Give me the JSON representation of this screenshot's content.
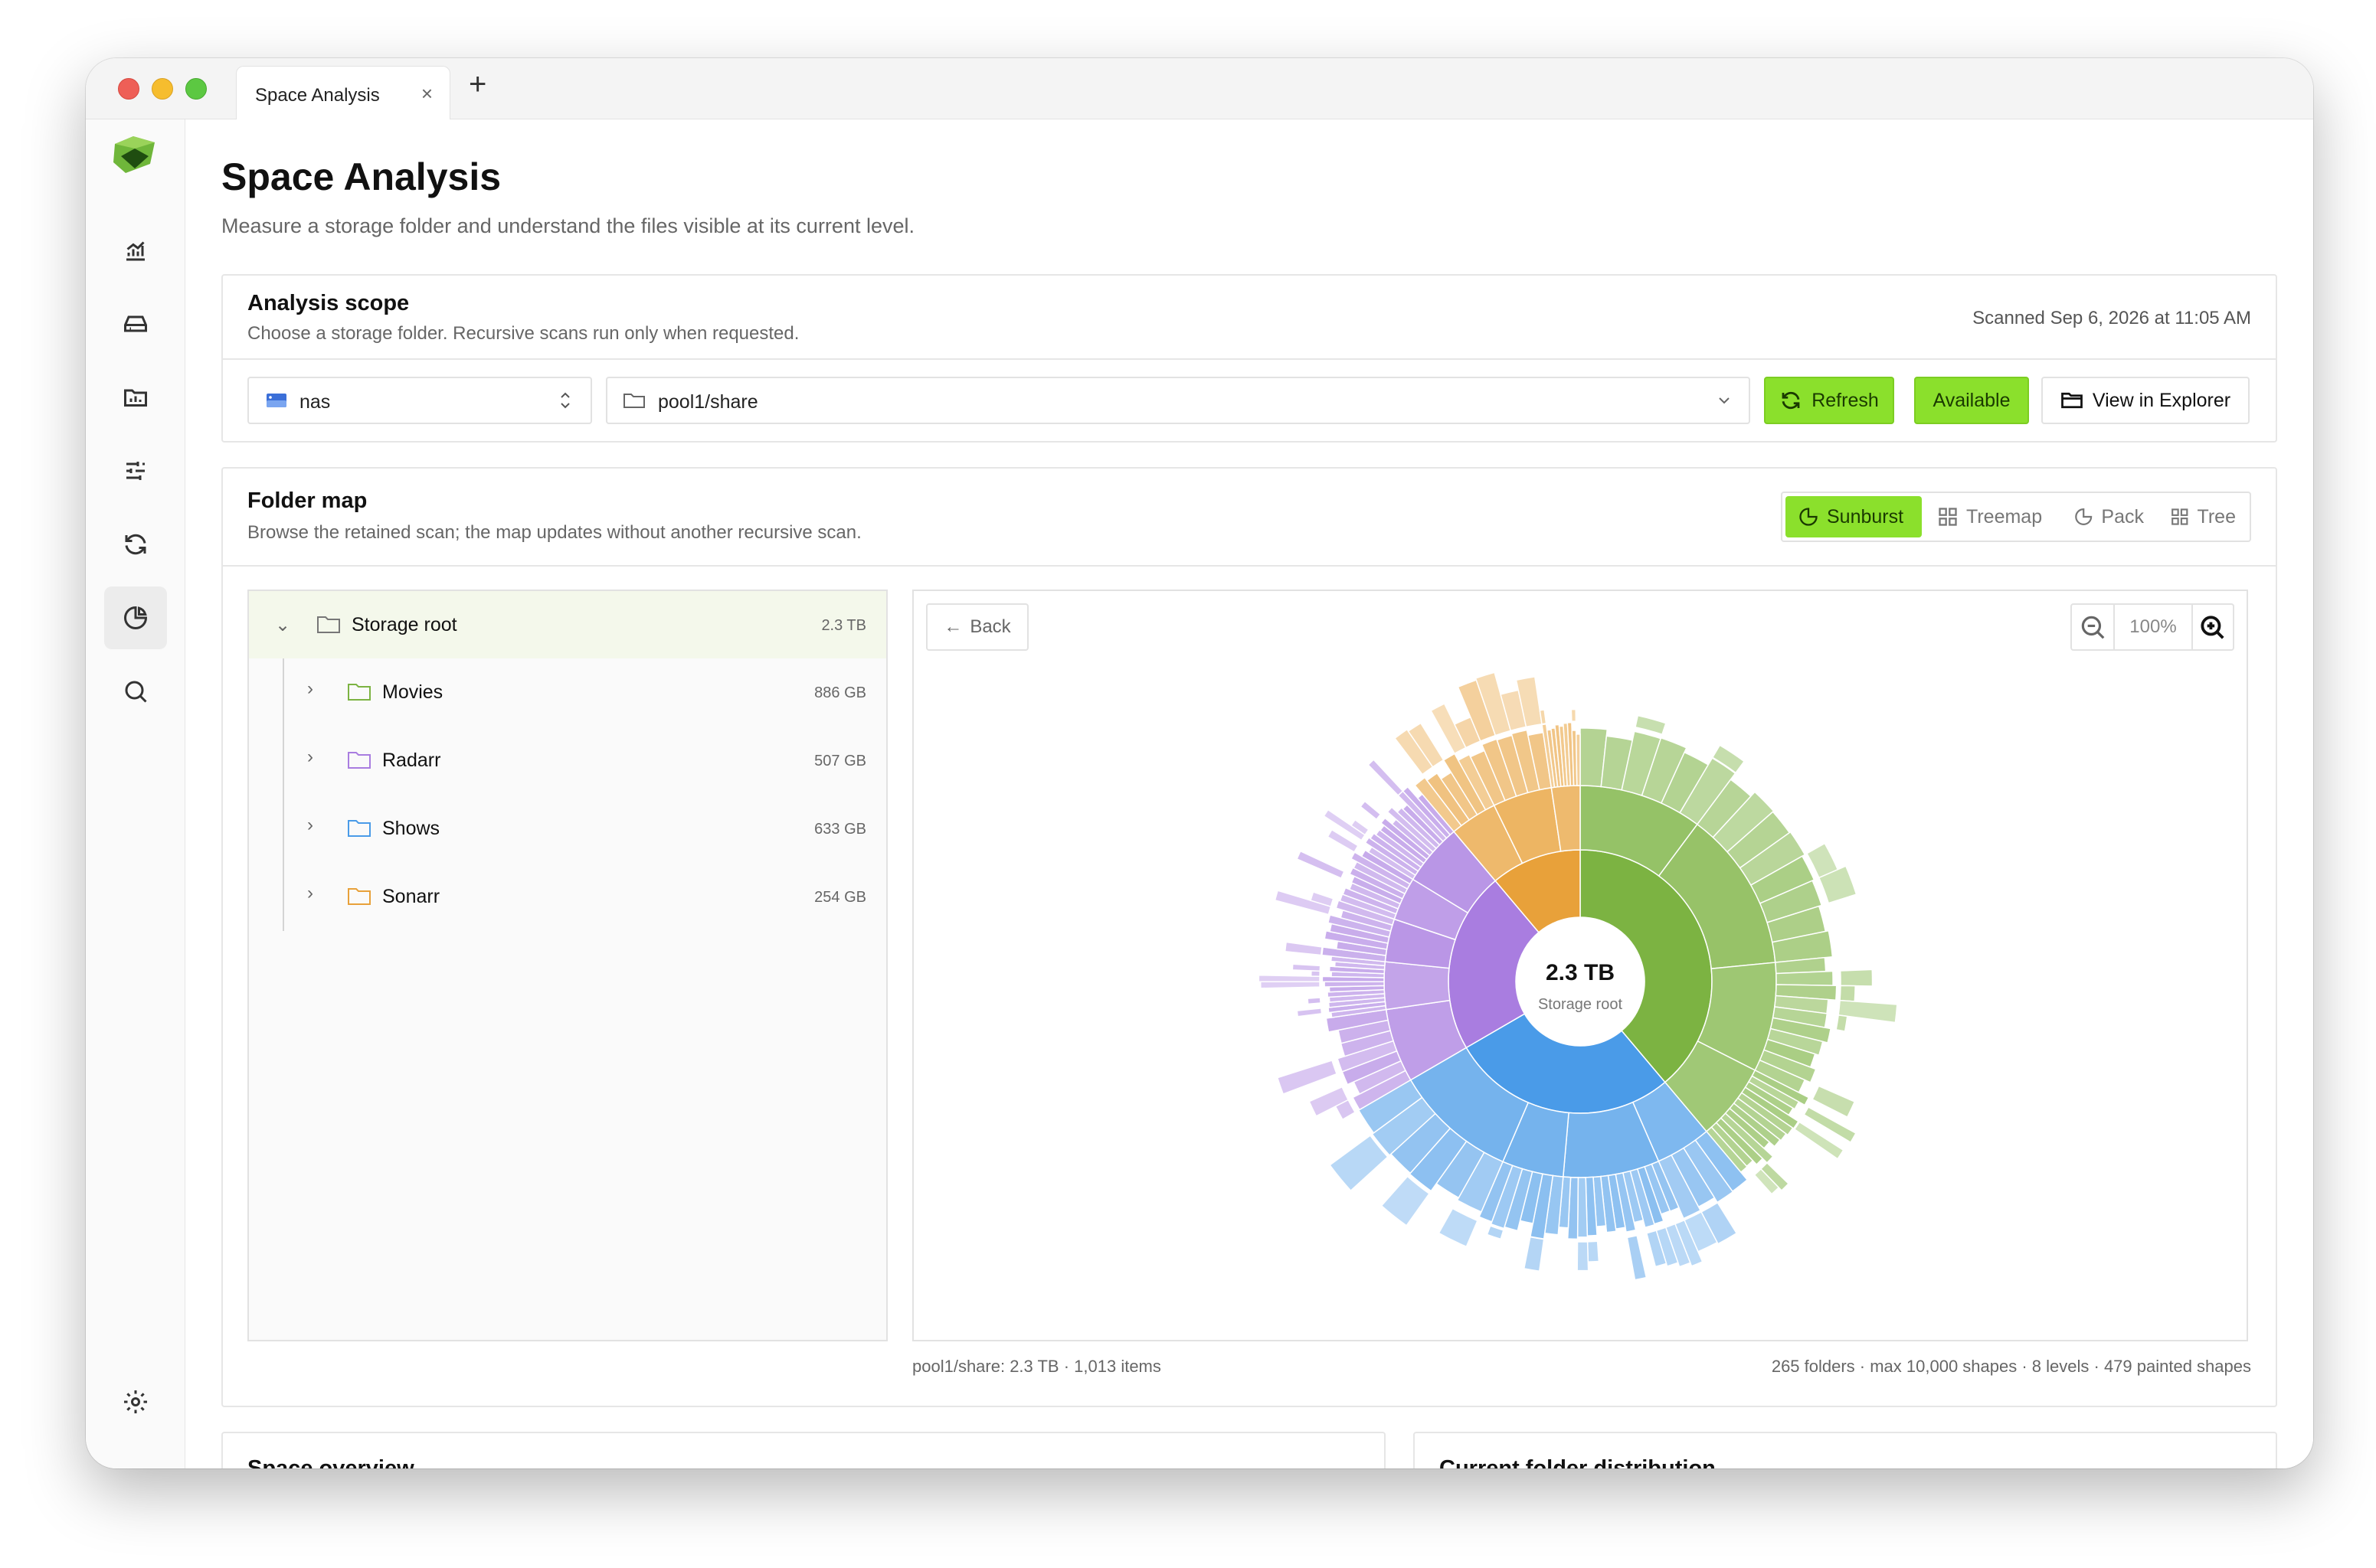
{
  "window": {
    "tab_title": "Space Analysis",
    "tab_close": "×",
    "new_tab": "+"
  },
  "sidebar": {
    "items": [
      {
        "icon": "analytics-icon"
      },
      {
        "icon": "drive-icon"
      },
      {
        "icon": "folder-chart-icon"
      },
      {
        "icon": "sliders-icon"
      },
      {
        "icon": "sync-icon"
      },
      {
        "icon": "pie-chart-icon",
        "active": true
      },
      {
        "icon": "search-icon"
      }
    ],
    "settings_icon": "gear-icon"
  },
  "page": {
    "title": "Space Analysis",
    "subtitle": "Measure a storage folder and understand the files visible at its current level."
  },
  "scope": {
    "title": "Analysis scope",
    "subtitle": "Choose a storage folder. Recursive scans run only when requested.",
    "scanned": "Scanned Sep 6, 2026 at 11:05 AM",
    "source": "nas",
    "path": "pool1/share",
    "refresh_label": "Refresh",
    "available_label": "Available",
    "explorer_label": "View in Explorer"
  },
  "folder_map": {
    "title": "Folder map",
    "subtitle": "Browse the retained scan; the map updates without another recursive scan.",
    "views": [
      "Sunburst",
      "Treemap",
      "Pack",
      "Tree"
    ],
    "active_view": "Sunburst",
    "back_label": "Back",
    "zoom": "100%",
    "center_value": "2.3 TB",
    "center_label": "Storage root",
    "footer_left": "pool1/share: 2.3 TB · 1,013 items",
    "footer_right": "265 folders · max 10,000 shapes · 8 levels · 479 painted shapes"
  },
  "tree": {
    "root": {
      "label": "Storage root",
      "size": "2.3 TB"
    },
    "children": [
      {
        "label": "Movies",
        "size": "886 GB",
        "color": "#7cb342"
      },
      {
        "label": "Radarr",
        "size": "507 GB",
        "color": "#a97de0"
      },
      {
        "label": "Shows",
        "size": "633 GB",
        "color": "#4a9be8"
      },
      {
        "label": "Sonarr",
        "size": "254 GB",
        "color": "#e8a13a"
      }
    ]
  },
  "bottom": {
    "left_title": "Space overview",
    "right_title": "Current folder distribution"
  },
  "chart_data": {
    "type": "sunburst",
    "center": "2.3 TB",
    "center_label": "Storage root",
    "segments": [
      {
        "name": "Movies",
        "value_gb": 886,
        "color": "#7cb342"
      },
      {
        "name": "Shows",
        "value_gb": 633,
        "color": "#4a9be8"
      },
      {
        "name": "Radarr",
        "value_gb": 507,
        "color": "#a97de0"
      },
      {
        "name": "Sonarr",
        "value_gb": 254,
        "color": "#e8a13a"
      }
    ],
    "levels": 8
  },
  "colors": {
    "accent": "#8be02c"
  }
}
